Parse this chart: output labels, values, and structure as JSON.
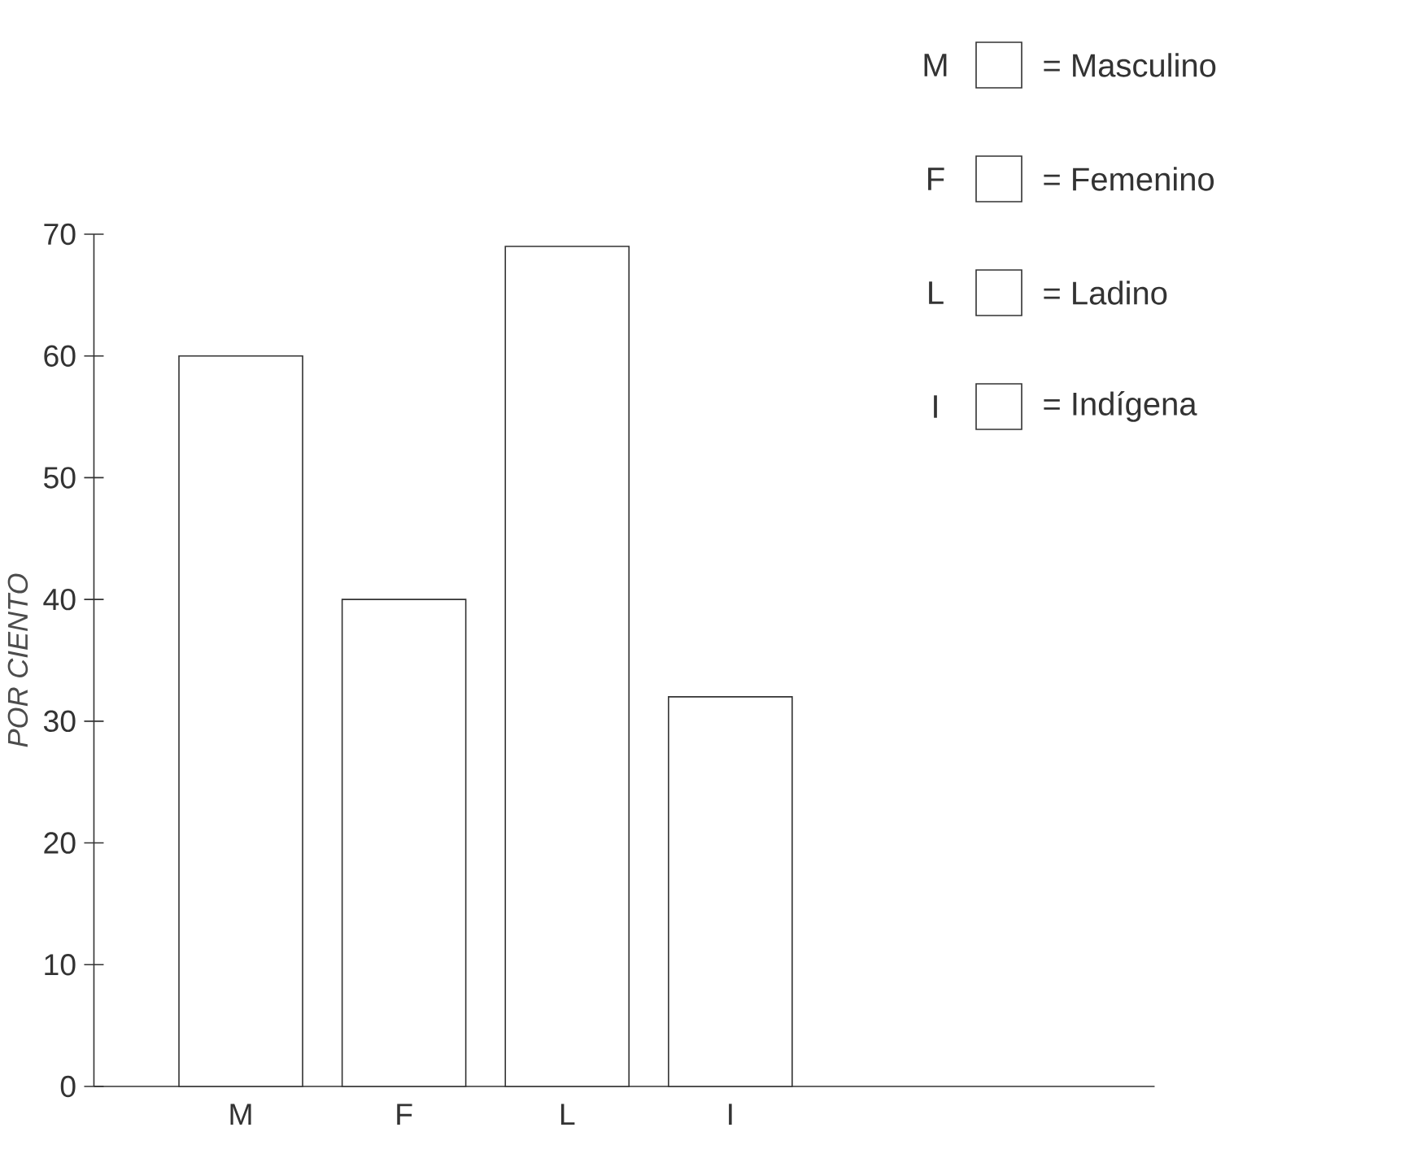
{
  "chart_data": {
    "type": "bar",
    "ylabel": "POR CIENTO",
    "categories": [
      "M",
      "F",
      "L",
      "I"
    ],
    "series": [
      {
        "name": "= Masculino",
        "color": "#333333",
        "values": [
          60,
          null,
          null,
          null
        ]
      },
      {
        "name": "= Femenino",
        "color": "#333333",
        "values": [
          null,
          40,
          null,
          null
        ]
      },
      {
        "name": "= Ladino",
        "color": "#333333",
        "values": [
          null,
          null,
          69,
          null
        ]
      },
      {
        "name": "= Indígena",
        "color": "#333333",
        "values": [
          null,
          null,
          null,
          32
        ]
      }
    ],
    "ylim": [
      0,
      70
    ],
    "yticks": [
      0,
      10,
      20,
      30,
      40,
      50,
      60,
      70
    ],
    "legend": "top right"
  }
}
